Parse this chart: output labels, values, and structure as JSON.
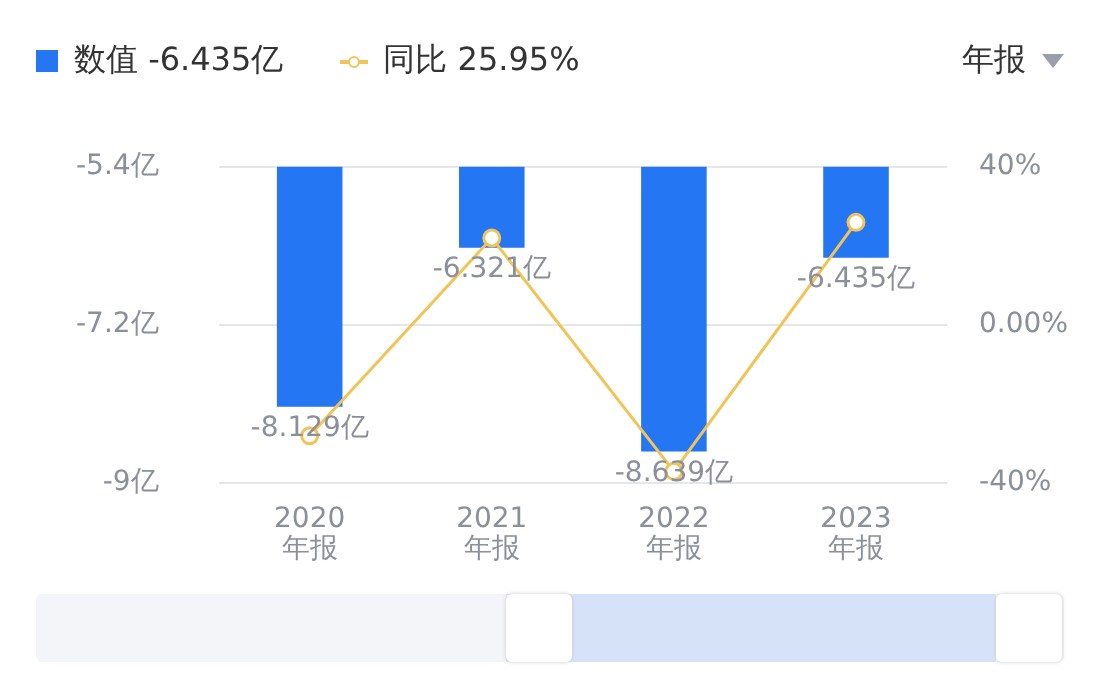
{
  "chart_data": {
    "type": "bar",
    "categories": [
      "2020\n年报",
      "2021\n年报",
      "2022\n年报",
      "2023\n年报"
    ],
    "series": [
      {
        "name": "数值 -6.435亿",
        "color": "#2476f2",
        "values": [
          -8.129,
          -6.321,
          -8.639,
          -6.435
        ],
        "value_labels": [
          "-8.129亿",
          "-6.321亿",
          "-8.639亿",
          "-6.435亿"
        ]
      },
      {
        "name": "同比 25.95%",
        "type": "line",
        "axis": "y2",
        "color": "#f2c457",
        "values": [
          -28,
          22,
          -37,
          25.95
        ]
      }
    ],
    "ylim": [
      -9,
      -5.4
    ],
    "yticks": [
      {
        "value": -9,
        "label": "-9亿"
      },
      {
        "value": -7.2,
        "label": "-7.2亿"
      },
      {
        "value": -5.4,
        "label": "-5.4亿"
      }
    ],
    "y2lim": [
      -40,
      40
    ],
    "y2ticks": [
      {
        "value": -40,
        "label": "-40%"
      },
      {
        "value": 0,
        "label": "0.00%"
      },
      {
        "value": 40,
        "label": "40%"
      }
    ],
    "grid": "y",
    "legend": "top left",
    "marker": "circle",
    "annotations": [
      "年报"
    ]
  }
}
